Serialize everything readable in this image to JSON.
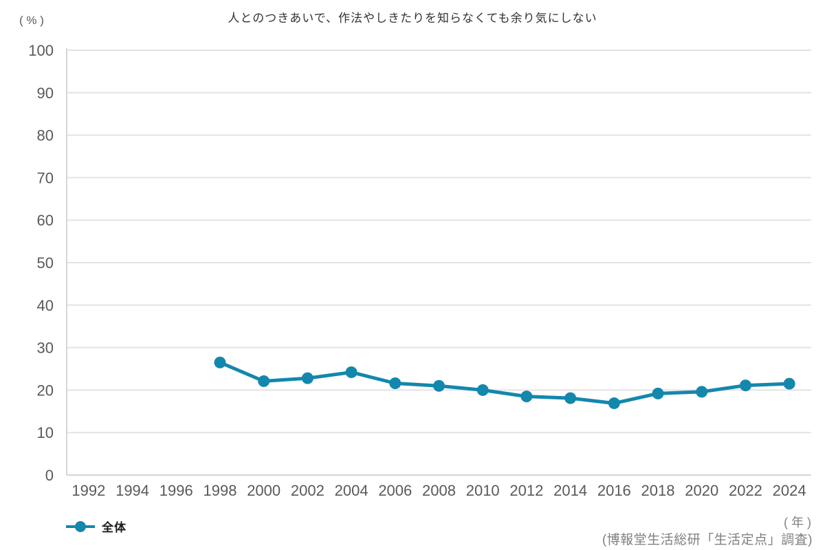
{
  "title": "人とのつきあいで、作法やしきたりを知らなくても余り気にしない",
  "y_unit_label": "( % )",
  "x_unit_label": "( 年 )",
  "source_note": "(博報堂生活総研「生活定点」調査)",
  "legend": {
    "series_label": "全体",
    "marker": "line-dot-marker"
  },
  "colors": {
    "series": "#1487ad",
    "grid": "#e3e3e3",
    "axis": "#d5d5d5",
    "tick_text": "#595959",
    "title_text": "#333333",
    "note_text": "#808080"
  },
  "chart_data": {
    "type": "line",
    "title": "人とのつきあいで、作法やしきたりを知らなくても余り気にしない",
    "xlabel": "(年)",
    "ylabel": "(%)",
    "ylim": [
      0,
      100
    ],
    "ytick_step": 10,
    "grid": "horizontal",
    "legend_position": "bottom-left",
    "categories": [
      1992,
      1994,
      1996,
      1998,
      2000,
      2002,
      2004,
      2006,
      2008,
      2010,
      2012,
      2014,
      2016,
      2018,
      2020,
      2022,
      2024
    ],
    "series": [
      {
        "name": "全体",
        "values": [
          null,
          null,
          null,
          26.5,
          22.1,
          22.8,
          24.2,
          21.6,
          21.0,
          20.0,
          18.5,
          18.1,
          16.9,
          19.2,
          19.6,
          21.1,
          21.5
        ]
      }
    ]
  }
}
